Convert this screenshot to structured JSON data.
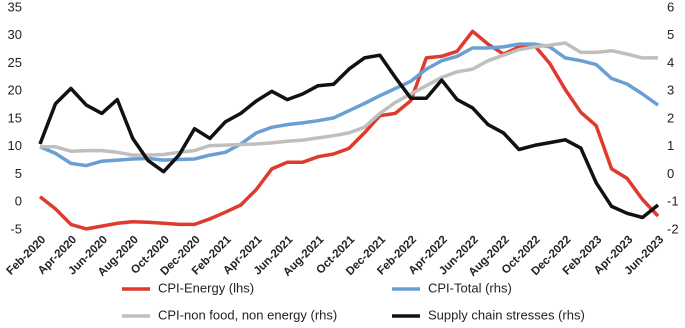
{
  "chart_data": {
    "type": "line",
    "categories": [
      "Feb-2020",
      null,
      "Apr-2020",
      null,
      "Jun-2020",
      null,
      "Aug-2020",
      null,
      "Oct-2020",
      null,
      "Dec-2020",
      null,
      "Feb-2021",
      null,
      "Apr-2021",
      null,
      "Jun-2021",
      null,
      "Aug-2021",
      null,
      "Oct-2021",
      null,
      "Dec-2021",
      null,
      "Feb-2022",
      null,
      "Apr-2022",
      null,
      "Jun-2022",
      null,
      "Aug-2022",
      null,
      "Oct-2022",
      null,
      "Dec-2022",
      null,
      "Feb-2023",
      null,
      "Apr-2023",
      null,
      "Jun-2023"
    ],
    "series": [
      {
        "name": "CPI-Energy (lhs)",
        "color": "#e03a2e",
        "axis": "y",
        "values": [
          1,
          -1.2,
          -4,
          -4.8,
          -4.3,
          -3.8,
          -3.5,
          -3.6,
          -3.8,
          -4,
          -4,
          -3,
          -1.8,
          -0.5,
          2.3,
          6,
          7.2,
          7.2,
          8.2,
          8.7,
          9.7,
          12.5,
          15.6,
          16,
          18.3,
          26,
          26.3,
          27.2,
          30.8,
          28.5,
          26.7,
          28,
          28.3,
          25,
          20.3,
          16.2,
          13.8,
          6,
          4.3,
          0.5,
          -2.5
        ]
      },
      {
        "name": "CPI-Total (rhs)",
        "color": "#6a9fd4",
        "axis": "y2",
        "values": [
          1,
          0.76,
          0.4,
          0.32,
          0.48,
          0.52,
          0.56,
          0.58,
          0.52,
          0.54,
          0.56,
          0.7,
          0.8,
          1.1,
          1.5,
          1.7,
          1.8,
          1.86,
          1.94,
          2.04,
          2.3,
          2.56,
          2.84,
          3.1,
          3.36,
          3.8,
          4.1,
          4.26,
          4.56,
          4.56,
          4.6,
          4.7,
          4.7,
          4.6,
          4.2,
          4.1,
          3.96,
          3.46,
          3.26,
          2.9,
          2.5
        ]
      },
      {
        "name": "CPI-non food, non energy (rhs)",
        "color": "#bfbfbf",
        "axis": "y2",
        "values": [
          1,
          1,
          0.84,
          0.86,
          0.86,
          0.8,
          0.7,
          0.7,
          0.72,
          0.8,
          0.86,
          1.04,
          1.06,
          1.08,
          1.1,
          1.14,
          1.2,
          1.24,
          1.32,
          1.4,
          1.5,
          1.7,
          2.2,
          2.6,
          2.9,
          3.2,
          3.5,
          3.7,
          3.8,
          4.1,
          4.3,
          4.5,
          4.6,
          4.66,
          4.74,
          4.4,
          4.4,
          4.46,
          4.34,
          4.2,
          4.2
        ]
      },
      {
        "name": "Supply chain stresses (rhs)",
        "color": "#111111",
        "axis": "y2",
        "values": [
          1.1,
          2.55,
          3.1,
          2.5,
          2.2,
          2.7,
          1.3,
          0.5,
          0.1,
          0.7,
          1.65,
          1.3,
          1.9,
          2.2,
          2.65,
          3,
          2.7,
          2.9,
          3.2,
          3.25,
          3.8,
          4.2,
          4.3,
          3.5,
          2.75,
          2.75,
          3.4,
          2.7,
          2.4,
          1.8,
          1.5,
          0.9,
          1.05,
          1.15,
          1.25,
          0.95,
          -0.3,
          -1.15,
          -1.4,
          -1.55,
          -1.1
        ]
      }
    ],
    "ylim": [
      -5,
      35
    ],
    "yticks": [
      -5,
      0,
      5,
      10,
      15,
      20,
      25,
      30,
      35
    ],
    "y2lim": [
      -2,
      6
    ],
    "y2ticks": [
      -2,
      -1,
      0,
      1,
      2,
      3,
      4,
      5,
      6
    ],
    "grid": false
  }
}
